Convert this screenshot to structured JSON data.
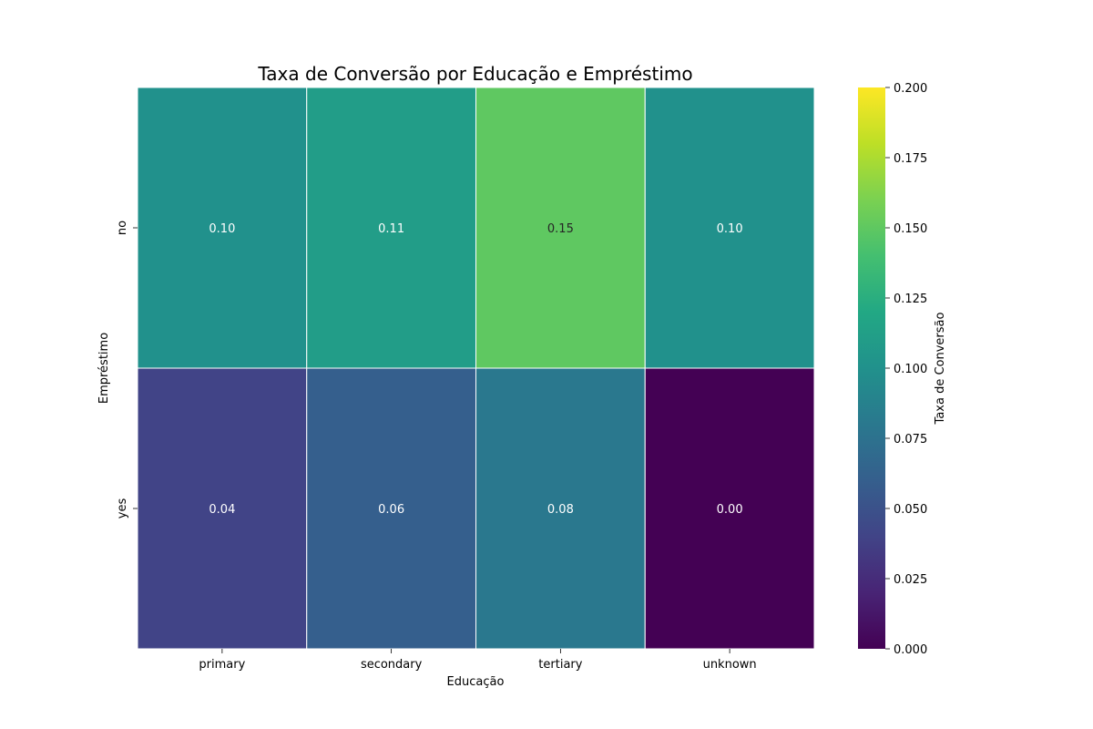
{
  "chart_data": {
    "type": "heatmap",
    "title": "Taxa de Conversão por Educação e Empréstimo",
    "xlabel": "Educação",
    "ylabel": "Empréstimo",
    "x_categories": [
      "primary",
      "secondary",
      "tertiary",
      "unknown"
    ],
    "y_categories": [
      "no",
      "yes"
    ],
    "values": [
      [
        0.1,
        0.11,
        0.15,
        0.1
      ],
      [
        0.04,
        0.06,
        0.08,
        0.0
      ]
    ],
    "annotations": [
      [
        "0.10",
        "0.11",
        "0.15",
        "0.10"
      ],
      [
        "0.04",
        "0.06",
        "0.08",
        "0.00"
      ]
    ],
    "colormap": "viridis",
    "vmin": 0.0,
    "vmax": 0.2,
    "colorbar": {
      "label": "Taxa de Conversão",
      "ticks": [
        "0.000",
        "0.025",
        "0.050",
        "0.075",
        "0.100",
        "0.125",
        "0.150",
        "0.175",
        "0.200"
      ],
      "tick_values": [
        0.0,
        0.025,
        0.05,
        0.075,
        0.1,
        0.125,
        0.15,
        0.175,
        0.2
      ]
    },
    "grid_line_color": "#ffffff"
  }
}
